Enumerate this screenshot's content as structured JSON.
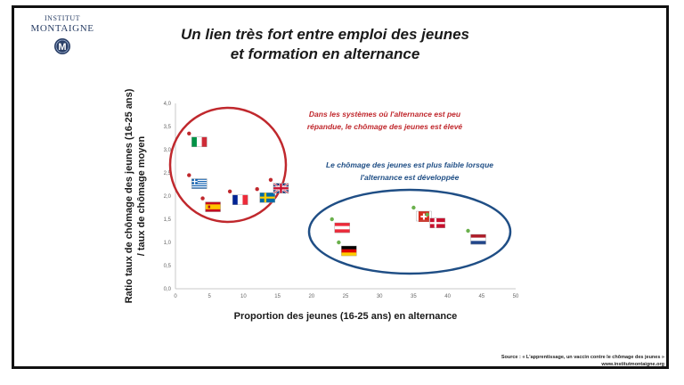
{
  "logo": {
    "line1": "INSTITUT",
    "line2": "MONTAIGNE",
    "mark_letter": "M",
    "mark_color": "#2a3f66"
  },
  "title": {
    "line1": "Un lien très fort entre emploi des jeunes",
    "line2": "et formation en alternance"
  },
  "source": {
    "line1": "Source : « L'apprentissage, un vaccin contre le chômage des jeunes »",
    "line2": "www.institutmontaigne.org"
  },
  "chart_data": {
    "type": "scatter",
    "xlabel": "Proportion  des jeunes (16-25 ans) en alternance",
    "ylabel": "Ratio taux de chômage des jeunes (16-25 ans) / taux de chômage moyen",
    "ylabel_lines": [
      "Ratio taux de chômage des jeunes (16-25 ans)",
      "/ taux de chômage moyen"
    ],
    "xlim": [
      0,
      50
    ],
    "ylim": [
      0,
      4
    ],
    "x_ticks": [
      "0",
      "5",
      "10",
      "15",
      "20",
      "25",
      "30",
      "35",
      "40",
      "45",
      "50"
    ],
    "y_ticks": [
      "0,0",
      "0,5",
      "1,0",
      "1,5",
      "2,0",
      "2,5",
      "3,0",
      "3,5",
      "4,0"
    ],
    "points": [
      {
        "flag": "italy",
        "x": 2,
        "y": 3.35,
        "color": "#c0282d"
      },
      {
        "flag": "greece",
        "x": 2,
        "y": 2.45,
        "color": "#c0282d"
      },
      {
        "flag": "spain",
        "x": 4,
        "y": 1.95,
        "color": "#c0282d"
      },
      {
        "flag": "france",
        "x": 8,
        "y": 2.1,
        "color": "#c0282d"
      },
      {
        "flag": "sweden",
        "x": 12,
        "y": 2.15,
        "color": "#c0282d"
      },
      {
        "flag": "uk",
        "x": 14,
        "y": 2.35,
        "color": "#c0282d"
      },
      {
        "flag": "austria",
        "x": 23,
        "y": 1.5,
        "color": "#6ab04c"
      },
      {
        "flag": "germany",
        "x": 24,
        "y": 1.0,
        "color": "#6ab04c"
      },
      {
        "flag": "switzerland",
        "x": 35,
        "y": 1.75,
        "color": "#6ab04c"
      },
      {
        "flag": "denmark",
        "x": 37,
        "y": 1.6,
        "color": "#6ab04c"
      },
      {
        "flag": "netherlands",
        "x": 43,
        "y": 1.25,
        "color": "#6ab04c"
      }
    ],
    "annotations": [
      {
        "id": "high-unemployment",
        "lines": [
          "Dans les systèmes où l'alternance est peu",
          "répandue, le chômage des jeunes est élevé"
        ],
        "color": "#c0282d"
      },
      {
        "id": "low-unemployment",
        "lines": [
          "Le chômage des jeunes est plus faible lorsque",
          "l'alternance est développée"
        ],
        "color": "#1f4e85"
      }
    ],
    "grid": false
  }
}
